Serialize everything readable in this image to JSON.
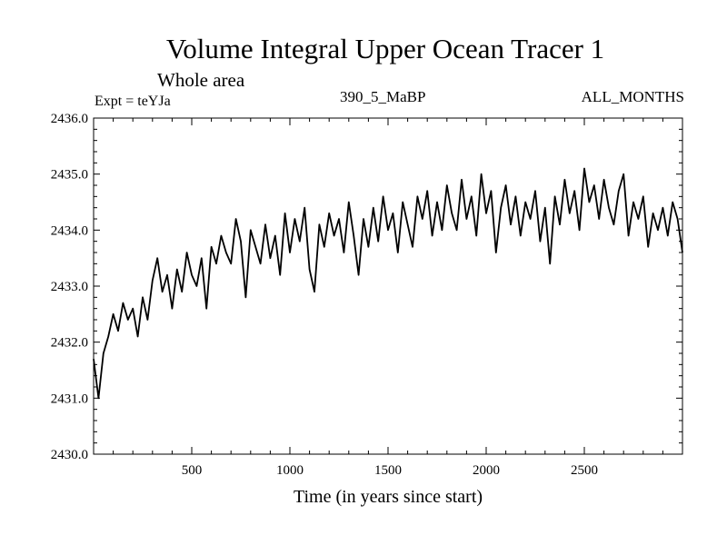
{
  "chart_data": {
    "type": "line",
    "title": "Volume Integral Upper Ocean Tracer 1",
    "subtitle": "Whole area",
    "left_label": "Expt = teYJa",
    "center_label": "390_5_MaBP",
    "right_label": "ALL_MONTHS",
    "xlabel": "Time (in years since start)",
    "ylabel": "",
    "xlim": [
      0,
      3000
    ],
    "ylim": [
      2430.0,
      2436.0
    ],
    "x_ticks": [
      500,
      1000,
      1500,
      2000,
      2500
    ],
    "x_tick_labels": [
      "500",
      "1000",
      "1500",
      "2000",
      "2500"
    ],
    "y_ticks": [
      2430.0,
      2431.0,
      2432.0,
      2433.0,
      2434.0,
      2435.0,
      2436.0
    ],
    "y_tick_labels": [
      "2430.0",
      "2431.0",
      "2432.0",
      "2433.0",
      "2434.0",
      "2435.0",
      "2436.0"
    ],
    "grid": false,
    "series": [
      {
        "name": "Tracer 1",
        "color": "#000000",
        "x": [
          0,
          25,
          50,
          75,
          100,
          125,
          150,
          175,
          200,
          225,
          250,
          275,
          300,
          325,
          350,
          375,
          400,
          425,
          450,
          475,
          500,
          525,
          550,
          575,
          600,
          625,
          650,
          675,
          700,
          725,
          750,
          775,
          800,
          825,
          850,
          875,
          900,
          925,
          950,
          975,
          1000,
          1025,
          1050,
          1075,
          1100,
          1125,
          1150,
          1175,
          1200,
          1225,
          1250,
          1275,
          1300,
          1325,
          1350,
          1375,
          1400,
          1425,
          1450,
          1475,
          1500,
          1525,
          1550,
          1575,
          1600,
          1625,
          1650,
          1675,
          1700,
          1725,
          1750,
          1775,
          1800,
          1825,
          1850,
          1875,
          1900,
          1925,
          1950,
          1975,
          2000,
          2025,
          2050,
          2075,
          2100,
          2125,
          2150,
          2175,
          2200,
          2225,
          2250,
          2275,
          2300,
          2325,
          2350,
          2375,
          2400,
          2425,
          2450,
          2475,
          2500,
          2525,
          2550,
          2575,
          2600,
          2625,
          2650,
          2675,
          2700,
          2725,
          2750,
          2775,
          2800,
          2825,
          2850,
          2875,
          2900,
          2925,
          2950,
          2975,
          3000
        ],
        "values": [
          2431.7,
          2431.0,
          2431.8,
          2432.1,
          2432.5,
          2432.2,
          2432.7,
          2432.4,
          2432.6,
          2432.1,
          2432.8,
          2432.4,
          2433.1,
          2433.5,
          2432.9,
          2433.2,
          2432.6,
          2433.3,
          2432.9,
          2433.6,
          2433.2,
          2433.0,
          2433.5,
          2432.6,
          2433.7,
          2433.4,
          2433.9,
          2433.6,
          2433.4,
          2434.2,
          2433.8,
          2432.8,
          2434.0,
          2433.7,
          2433.4,
          2434.1,
          2433.5,
          2433.9,
          2433.2,
          2434.3,
          2433.6,
          2434.2,
          2433.8,
          2434.4,
          2433.3,
          2432.9,
          2434.1,
          2433.7,
          2434.3,
          2433.9,
          2434.2,
          2433.6,
          2434.5,
          2433.9,
          2433.2,
          2434.2,
          2433.7,
          2434.4,
          2433.8,
          2434.6,
          2434.0,
          2434.3,
          2433.6,
          2434.5,
          2434.1,
          2433.7,
          2434.6,
          2434.2,
          2434.7,
          2433.9,
          2434.5,
          2434.0,
          2434.8,
          2434.3,
          2434.0,
          2434.9,
          2434.2,
          2434.6,
          2433.9,
          2435.0,
          2434.3,
          2434.7,
          2433.6,
          2434.4,
          2434.8,
          2434.1,
          2434.6,
          2433.9,
          2434.5,
          2434.2,
          2434.7,
          2433.8,
          2434.4,
          2433.4,
          2434.6,
          2434.1,
          2434.9,
          2434.3,
          2434.7,
          2434.0,
          2435.1,
          2434.5,
          2434.8,
          2434.2,
          2434.9,
          2434.4,
          2434.1,
          2434.7,
          2435.0,
          2433.9,
          2434.5,
          2434.2,
          2434.6,
          2433.7,
          2434.3,
          2434.0,
          2434.4,
          2433.9,
          2434.5,
          2434.2,
          2433.6
        ]
      }
    ]
  }
}
